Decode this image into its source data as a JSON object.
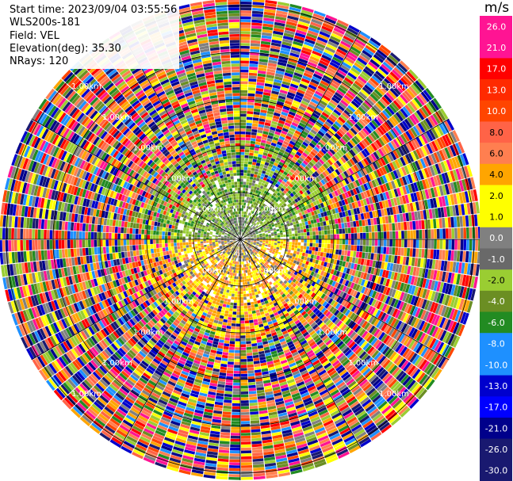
{
  "header": {
    "start_time": "Start time: 2023/09/04 03:55:56",
    "instrument": "WLS200s-181",
    "field": "Field: VEL",
    "elevation": "Elevation(deg): 35.30",
    "nrays": "NRays: 120"
  },
  "colorbar": {
    "unit": "m/s",
    "ticks": [
      "26.0",
      "21.0",
      "17.0",
      "13.0",
      "10.0",
      "8.0",
      "6.0",
      "4.0",
      "2.0",
      "1.0",
      "0.0",
      "-1.0",
      "-2.0",
      "-4.0",
      "-6.0",
      "-8.0",
      "-10.0",
      "-13.0",
      "-17.0",
      "-21.0",
      "-26.0",
      "-30.0"
    ],
    "colors": [
      "#ff1493",
      "#ff1493",
      "#ff0000",
      "#ff2a00",
      "#ff4500",
      "#ff6347",
      "#ff7f50",
      "#ffa500",
      "#ffff00",
      "#ffff00",
      "#808080",
      "#696969",
      "#9acd32",
      "#6b8e23",
      "#228b22",
      "#1e90ff",
      "#1e90ff",
      "#0000cd",
      "#0000ff",
      "#00008b",
      "#191970",
      "#191970"
    ]
  },
  "chart_data": {
    "type": "heatmap",
    "subtype": "polar PPI scan",
    "field": "VEL",
    "units": "m/s",
    "elevation_deg": 35.3,
    "n_rays": 120,
    "range_ring_labels": [
      "1.00km",
      "1.00km",
      "1.00km",
      "1.00km",
      "1.00km",
      "1.00km",
      "1.00km",
      "1.00km",
      "1.00km",
      "1.00km",
      "1.00km",
      "1.00km",
      "1.00km",
      "1.00km",
      "1.00km",
      "1.00km",
      "1.00km",
      "1.00km",
      "1.00km",
      "1.00km",
      "1.00km",
      "1.00km",
      "1.00km",
      "1.00km"
    ],
    "value_min": -30.0,
    "value_max": 26.0,
    "pattern": "near-range shows positive (yellow/orange) radial velocities to the south and negative (green) to the north; far range is noise-dominated multicolor"
  }
}
